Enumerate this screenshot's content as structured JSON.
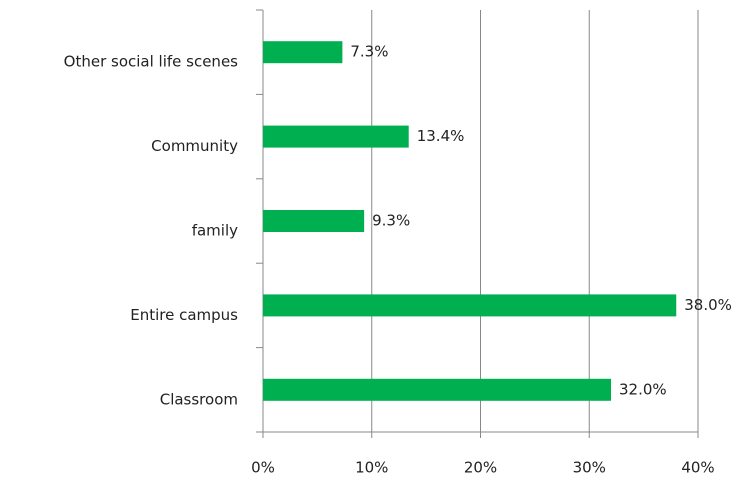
{
  "chart_data": {
    "type": "barh",
    "categories": [
      "Other social life scenes",
      "Community",
      "family",
      "Entire campus",
      "Classroom"
    ],
    "values": [
      7.3,
      13.4,
      9.3,
      38.0,
      32.0
    ],
    "value_labels": [
      "7.3%",
      "13.4%",
      "9.3%",
      "38.0%",
      "32.0%"
    ],
    "color": "#00b050",
    "xlim": [
      0,
      40
    ],
    "xticks": [
      {
        "value": 0,
        "label": "0%"
      },
      {
        "value": 10,
        "label": "10%"
      },
      {
        "value": 20,
        "label": "20%"
      },
      {
        "value": 30,
        "label": "30%"
      },
      {
        "value": 40,
        "label": "40%"
      }
    ],
    "grid": true
  }
}
